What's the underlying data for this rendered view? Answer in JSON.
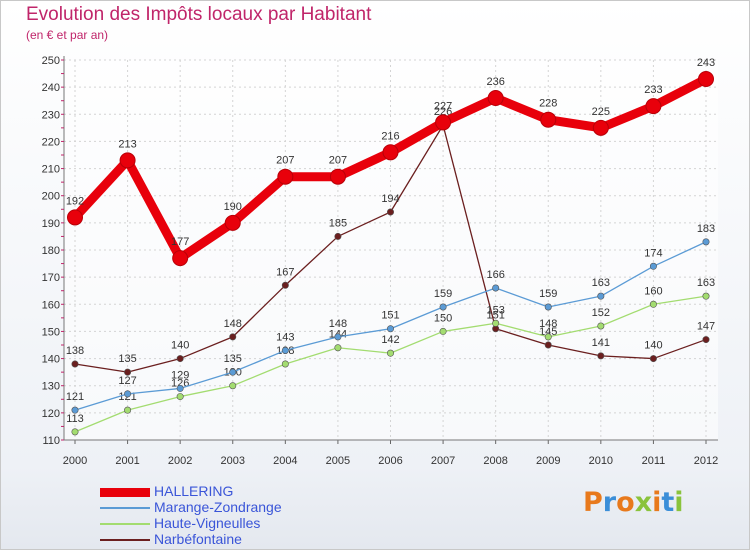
{
  "header": {
    "title": "Evolution des Impôts locaux par Habitant",
    "subtitle": "(en € et par an)"
  },
  "logo": {
    "text": "Proxiti",
    "colors": [
      "#e8791c",
      "#3b8ed8",
      "#e8791c",
      "#8ac33c",
      "#e8791c",
      "#3b8ed8",
      "#8ac33c"
    ]
  },
  "chart_data": {
    "type": "line",
    "title": "Evolution des Impôts locaux par Habitant",
    "subtitle": "(en € et par an)",
    "xlabel": "",
    "ylabel": "",
    "ylim": [
      110,
      250
    ],
    "yticks": [
      110,
      120,
      130,
      140,
      150,
      160,
      170,
      180,
      190,
      200,
      210,
      220,
      230,
      240,
      250
    ],
    "grid": true,
    "legend_position": "bottom-left",
    "x": [
      "2000",
      "2001",
      "2002",
      "2003",
      "2004",
      "2005",
      "2006",
      "2007",
      "2008",
      "2009",
      "2010",
      "2011",
      "2012"
    ],
    "series": [
      {
        "name": "HALLERING",
        "color": "#e8000b",
        "values": [
          192,
          213,
          177,
          190,
          207,
          207,
          216,
          227,
          236,
          228,
          225,
          233,
          243
        ]
      },
      {
        "name": "Marange-Zondrange",
        "color": "#5b9bd5",
        "values": [
          121,
          127,
          129,
          135,
          143,
          148,
          151,
          159,
          166,
          159,
          163,
          174,
          183
        ]
      },
      {
        "name": "Haute-Vigneulles",
        "color": "#a3dc70",
        "values": [
          113,
          121,
          126,
          130,
          138,
          144,
          142,
          150,
          153,
          148,
          152,
          160,
          163
        ]
      },
      {
        "name": "Narbéfontaine",
        "color": "#6b1f1f",
        "values": [
          138,
          135,
          140,
          148,
          167,
          185,
          194,
          226,
          151,
          145,
          141,
          140,
          147
        ]
      }
    ]
  }
}
